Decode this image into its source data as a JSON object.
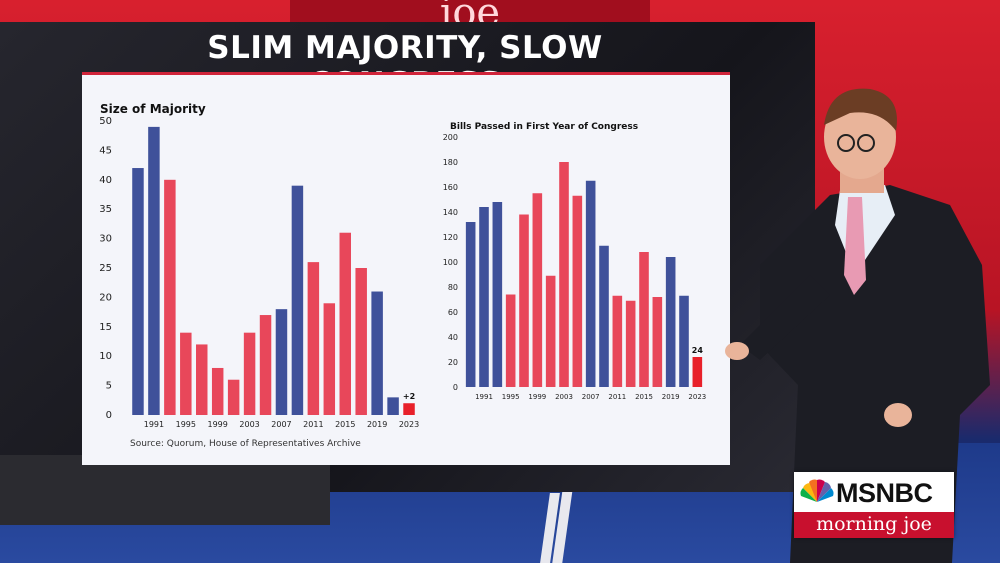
{
  "broadcast": {
    "headline": "SLIM MAJORITY, SLOW CONGRESS",
    "network": "MSNBC",
    "show": "morning joe",
    "top_sign": "joe"
  },
  "source_note": "Source: Quorum, House of Representatives Archive",
  "colors": {
    "republican": "#e8475a",
    "democrat": "#3f519a",
    "highlight": "#e8202a"
  },
  "chart_data": [
    {
      "type": "bar",
      "title": "Size of Majority",
      "ylim": [
        0,
        50
      ],
      "yticks": [
        0,
        5,
        10,
        15,
        20,
        25,
        30,
        35,
        40,
        45,
        50
      ],
      "xtick_labels": [
        "1991",
        "1995",
        "1999",
        "2003",
        "2007",
        "2011",
        "2015",
        "2019",
        "2023"
      ],
      "values": [
        42,
        49,
        40,
        14,
        12,
        8,
        6,
        14,
        17,
        18,
        39,
        26,
        19,
        31,
        25,
        21,
        3,
        2
      ],
      "party": [
        "D",
        "D",
        "R",
        "R",
        "R",
        "R",
        "R",
        "R",
        "R",
        "D",
        "D",
        "R",
        "R",
        "R",
        "R",
        "D",
        "D",
        "R"
      ],
      "annotation": "+2"
    },
    {
      "type": "bar",
      "title": "Bills Passed in First Year of Congress",
      "ylim": [
        0,
        200
      ],
      "yticks": [
        0,
        20,
        40,
        60,
        80,
        100,
        120,
        140,
        160,
        180,
        200
      ],
      "xtick_labels": [
        "1991",
        "1995",
        "1999",
        "2003",
        "2007",
        "2011",
        "2015",
        "2019",
        "2023"
      ],
      "values": [
        132,
        144,
        148,
        74,
        138,
        155,
        89,
        180,
        153,
        165,
        113,
        73,
        69,
        108,
        72,
        104,
        73,
        24
      ],
      "party": [
        "D",
        "D",
        "D",
        "R",
        "R",
        "R",
        "R",
        "R",
        "R",
        "D",
        "D",
        "R",
        "R",
        "R",
        "R",
        "D",
        "D",
        "R"
      ],
      "annotation": "24"
    }
  ]
}
